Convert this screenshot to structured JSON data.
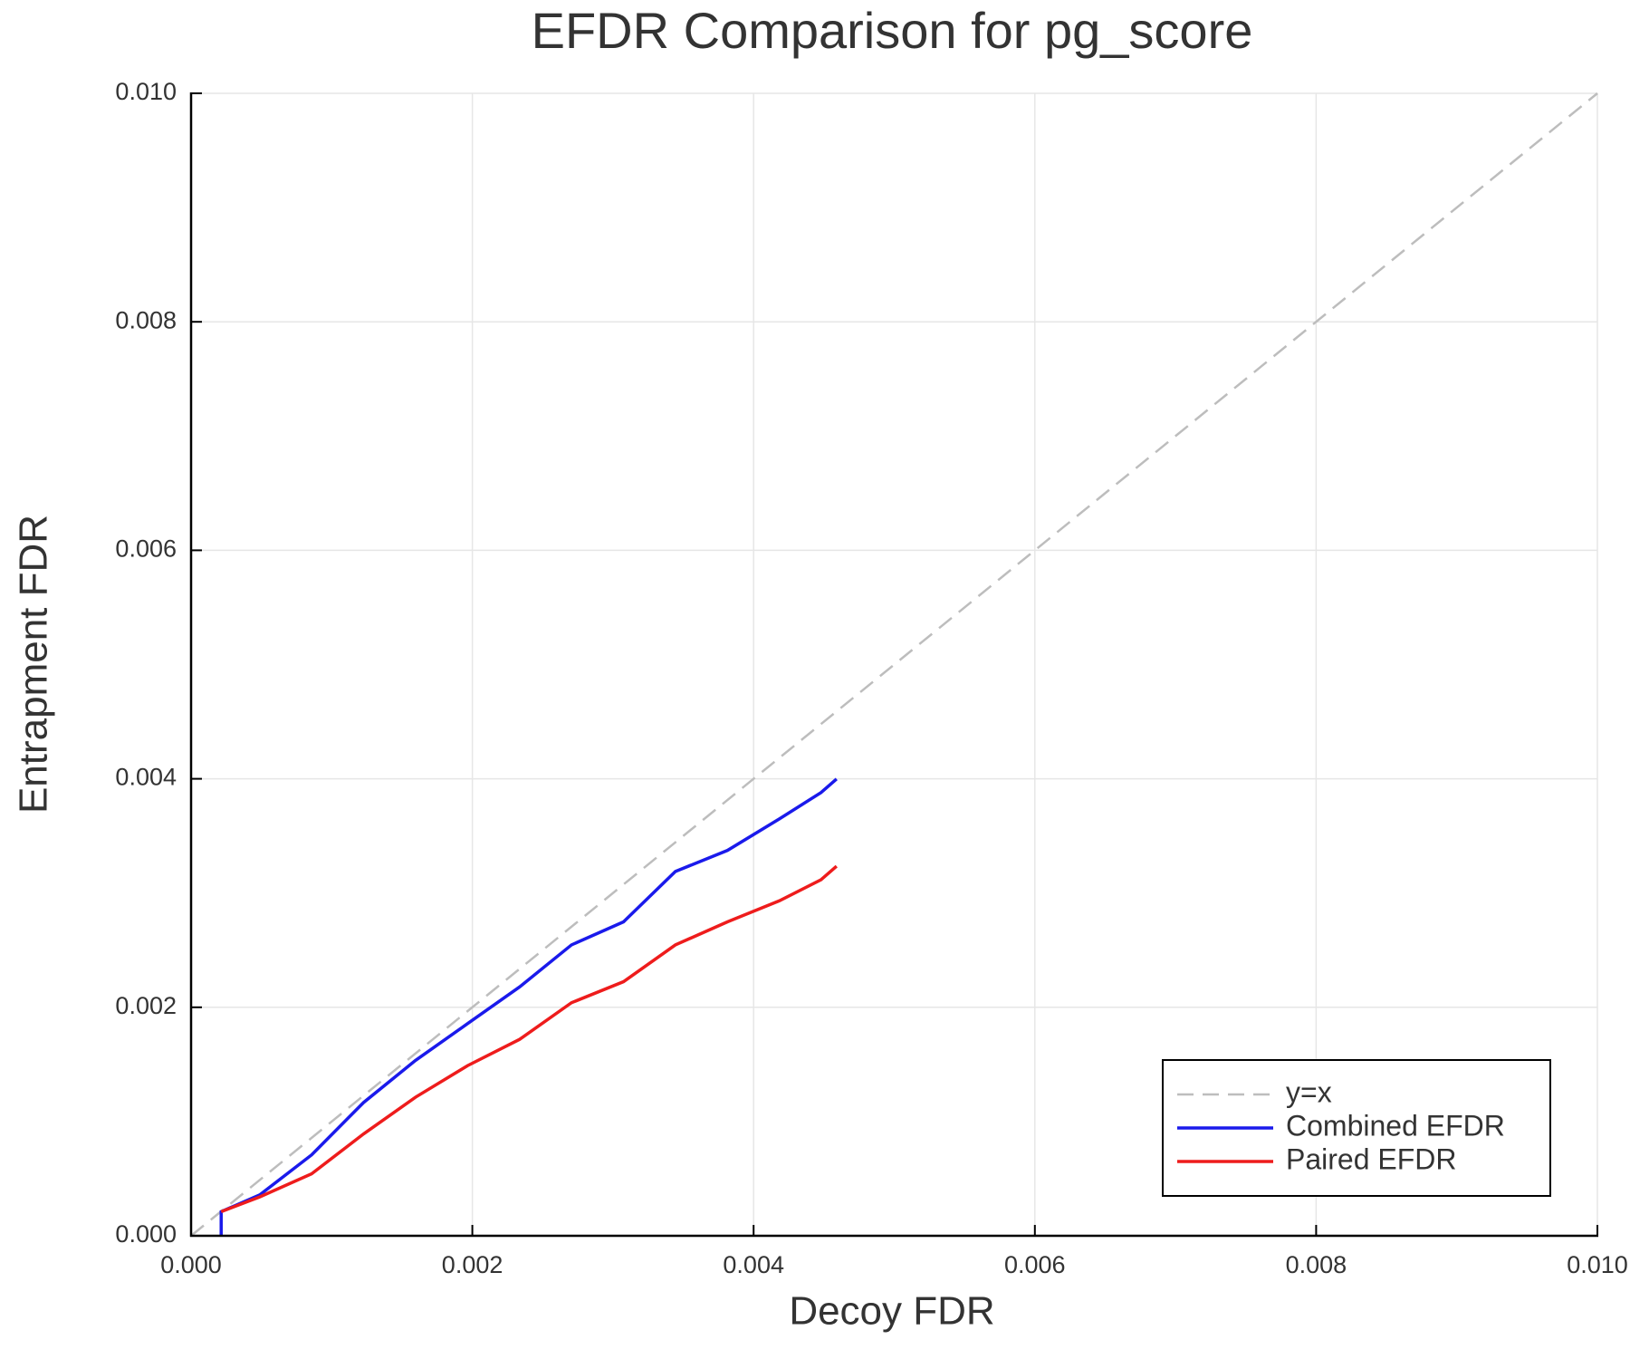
{
  "chart_data": {
    "type": "line",
    "title": "EFDR Comparison for pg_score",
    "x_label": "Decoy FDR",
    "y_label": "Entrapment FDR",
    "xlim": [
      0,
      0.01
    ],
    "ylim": [
      0,
      0.01
    ],
    "xticks": [
      {
        "value": 0,
        "label": "0.000"
      },
      0.002,
      0.004,
      0.006,
      0.008,
      {
        "value": 0.01,
        "label": "0.010"
      }
    ],
    "yticks": [
      {
        "value": 0,
        "label": "0.000"
      },
      0.002,
      0.004,
      0.006,
      0.008,
      {
        "value": 0.01,
        "label": "0.010"
      }
    ],
    "grid": true,
    "legend": "bottom-right",
    "series": [
      {
        "name": "y=x",
        "color": "#bdbdbd",
        "linestyle": "dashed",
        "x": [
          0,
          0.01
        ],
        "values": [
          0,
          0.01
        ]
      },
      {
        "name": "Combined EFDR",
        "color": "#1a1aeb",
        "linestyle": "solid",
        "x": [
          0.000214,
          0.000214,
          0.000488,
          0.000857,
          0.001227,
          0.001596,
          0.001966,
          0.002336,
          0.002705,
          0.003075,
          0.003444,
          0.003814,
          0.004183,
          0.004479,
          0.00459
        ],
        "values": [
          0,
          0.000211,
          0.000358,
          0.000708,
          0.001167,
          0.001535,
          0.001857,
          0.002178,
          0.002546,
          0.002748,
          0.003189,
          0.003373,
          0.003649,
          0.003879,
          0.003998
        ]
      },
      {
        "name": "Paired EFDR",
        "color": "#ee1c1c",
        "linestyle": "solid",
        "x": [
          0.000214,
          0.000488,
          0.000857,
          0.001227,
          0.001596,
          0.001966,
          0.002336,
          0.002705,
          0.003075,
          0.003444,
          0.003814,
          0.004183,
          0.004479,
          0.00459
        ],
        "values": [
          0.000211,
          0.00034,
          0.000542,
          0.000892,
          0.001213,
          0.001489,
          0.001719,
          0.00204,
          0.002224,
          0.002546,
          0.002748,
          0.002932,
          0.003116,
          0.003235
        ]
      }
    ]
  }
}
